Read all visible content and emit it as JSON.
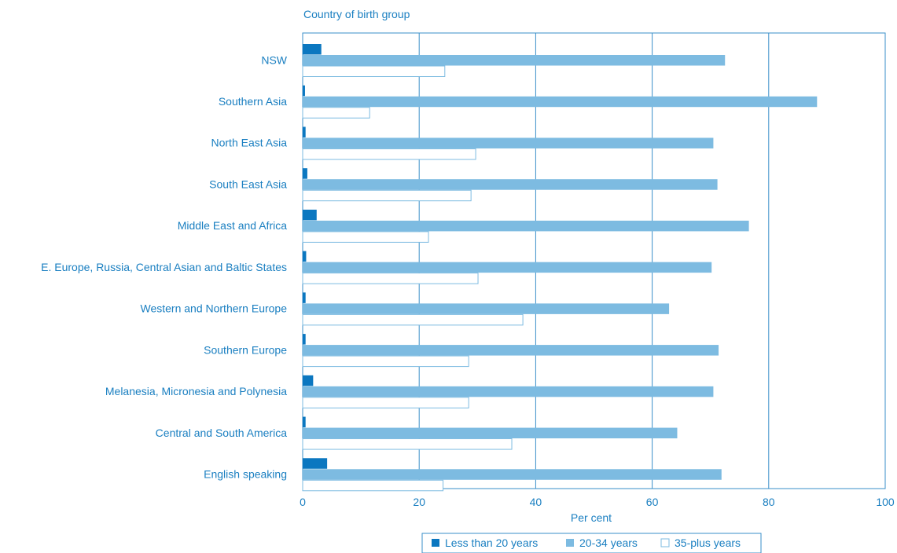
{
  "chart_data": {
    "type": "bar",
    "orientation": "horizontal",
    "y_title": "Country of birth group",
    "xlabel": "Per cent",
    "xlim": [
      0,
      100
    ],
    "xticks": [
      0,
      20,
      40,
      60,
      80,
      100
    ],
    "grid": "vertical",
    "legend_position": "bottom",
    "categories": [
      "NSW",
      "Southern Asia",
      "North East Asia",
      "South East Asia",
      "Middle East and Africa",
      "E. Europe, Russia, Central Asian and Baltic States",
      "Western and Northern Europe",
      "Southern Europe",
      "Melanesia, Micronesia and Polynesia",
      "Central and South America",
      "English speaking"
    ],
    "series": [
      {
        "name": "Less than 20 years",
        "color": "#0b77c0",
        "values": [
          3.2,
          0.4,
          0.5,
          0.8,
          2.4,
          0.6,
          0.5,
          0.5,
          1.8,
          0.5,
          4.2
        ]
      },
      {
        "name": "20-34 years",
        "color": "#7dbbe1",
        "values": [
          72.5,
          88.3,
          70.5,
          71.2,
          76.6,
          70.2,
          62.9,
          71.4,
          70.5,
          64.3,
          71.9
        ]
      },
      {
        "name": "35-plus years",
        "color": "#ffffff",
        "stroke": "#7dbbe1",
        "values": [
          24.4,
          11.5,
          29.7,
          28.9,
          21.6,
          30.1,
          37.8,
          28.5,
          28.5,
          35.9,
          24.1
        ]
      }
    ]
  }
}
